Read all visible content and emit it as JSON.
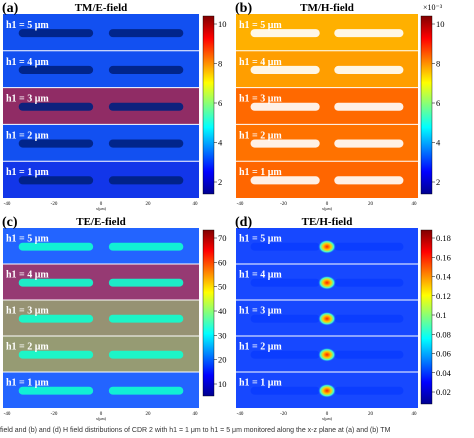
{
  "panels": [
    {
      "id": "a",
      "label": "(a)",
      "title": "TM/E-field",
      "scale_exponent": "",
      "colorbar_ticks": [
        "10",
        "8",
        "6",
        "4",
        "2"
      ],
      "strip_labels": [
        "h1 = 5 μm",
        "h1 = 4 μm",
        "h1 = 3 μm",
        "h1 = 2 μm",
        "h1 = 1 μm"
      ],
      "x_ticks": [
        "-40",
        "-20",
        "0",
        "20",
        "40"
      ],
      "x_label": "x(μm)"
    },
    {
      "id": "b",
      "label": "(b)",
      "title": "TM/H-field",
      "scale_exponent": "×10⁻³",
      "colorbar_ticks": [
        "10",
        "8",
        "6",
        "4",
        "2"
      ],
      "strip_labels": [
        "h1 = 5 μm",
        "h1 = 4 μm",
        "h1 = 3 μm",
        "h1 = 2 μm",
        "h1 = 1 μm"
      ],
      "x_ticks": [
        "-40",
        "-20",
        "0",
        "20",
        "40"
      ],
      "x_label": "x(μm)"
    },
    {
      "id": "c",
      "label": "(c)",
      "title": "TE/E-field",
      "scale_exponent": "",
      "colorbar_ticks": [
        "70",
        "60",
        "50",
        "40",
        "30",
        "20",
        "10"
      ],
      "strip_labels": [
        "h1 = 5 μm",
        "h1 = 4 μm",
        "h1 = 3 μm",
        "h1 = 2 μm",
        "h1 = 1 μm"
      ],
      "x_ticks": [
        "-40",
        "-20",
        "0",
        "20",
        "40"
      ],
      "x_label": "x(μm)"
    },
    {
      "id": "d",
      "label": "(d)",
      "title": "TE/H-field",
      "scale_exponent": "",
      "colorbar_ticks": [
        "0.18",
        "0.16",
        "0.14",
        "0.12",
        "0.1",
        "0.08",
        "0.06",
        "0.04",
        "0.02"
      ],
      "strip_labels": [
        "h1 = 5 μm",
        "h1 = 4 μm",
        "h1 = 3 μm",
        "h1 = 2 μm",
        "h1 = 1 μm"
      ],
      "x_ticks": [
        "-40",
        "-20",
        "0",
        "20",
        "40"
      ],
      "x_label": "x(μm)"
    }
  ],
  "caption": "field and (b) and (d) H field distributions of CDR 2 with h1 = 1 μm to h1 = 5 μm monitored along the x-z plane at (a) and (b) TM"
}
